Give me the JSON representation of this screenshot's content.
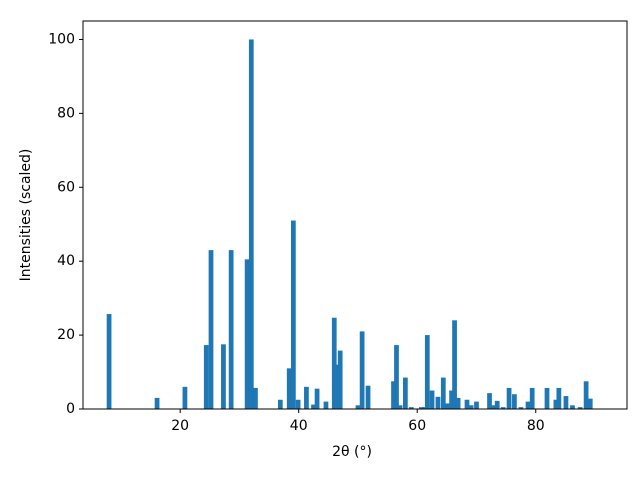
{
  "chart_data": {
    "type": "bar",
    "x_label": "2θ (°)",
    "y_label": "Intensities (scaled)",
    "x": [
      8.0,
      16.1,
      20.8,
      24.4,
      25.2,
      27.3,
      28.6,
      31.3,
      32.0,
      32.7,
      36.9,
      38.4,
      39.1,
      39.9,
      41.3,
      42.5,
      43.1,
      44.6,
      46.0,
      46.5,
      47.0,
      50.0,
      50.7,
      51.7,
      56.0,
      56.5,
      57.1,
      58.0,
      59.0,
      60.7,
      61.2,
      61.7,
      62.5,
      63.5,
      64.4,
      65.1,
      65.8,
      66.3,
      66.9,
      68.4,
      69.1,
      70.0,
      72.2,
      72.8,
      73.5,
      74.5,
      75.5,
      76.4,
      77.5,
      78.7,
      79.4,
      81.9,
      83.4,
      83.9,
      85.1,
      86.2,
      87.5,
      88.5,
      89.2
    ],
    "values": [
      25.7,
      3,
      6,
      17.3,
      43,
      17.5,
      43,
      40.5,
      100,
      5.7,
      2.5,
      11,
      51,
      2.5,
      6,
      1.2,
      5.5,
      2,
      24.7,
      12,
      15.8,
      1,
      21,
      6.3,
      7.5,
      17.3,
      1,
      8.5,
      0.5,
      0.5,
      0.5,
      20,
      5,
      3.3,
      8.5,
      1.5,
      5,
      24,
      3,
      2.5,
      1,
      2,
      4.3,
      1,
      2.2,
      0.5,
      5.7,
      4,
      0.5,
      2,
      5.7,
      5.7,
      2.5,
      5.7,
      3.5,
      1,
      0.5,
      7.5,
      2.8
    ],
    "color": "#1f77b4",
    "xlim": [
      3.6,
      95.4
    ],
    "xticks": [
      20,
      40,
      60,
      80
    ],
    "ylim": [
      0,
      105
    ],
    "yticks": [
      0,
      20,
      40,
      60,
      80,
      100
    ]
  }
}
